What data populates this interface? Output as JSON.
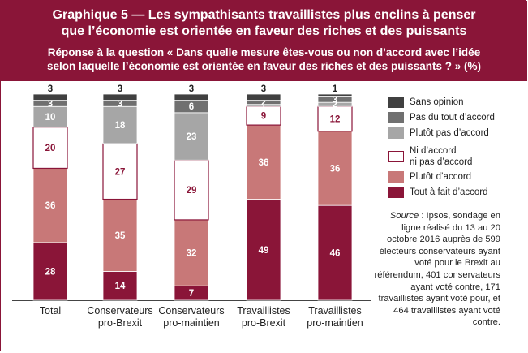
{
  "header": {
    "title_line1": "Graphique 5 — Les sympathisants travaillistes plus enclins à penser",
    "title_line2": "que l’économie est orientée en faveur des riches et des puissants",
    "subtitle_line1": "Réponse à la question « Dans quelle mesure êtes-vous ou non d’accord avec l’idée",
    "subtitle_line2": "selon laquelle l’économie est orientée en faveur des riches et des puissants ? » (%)"
  },
  "colors": {
    "header_bg": "#8a1538",
    "sans_opinion": "#404040",
    "pas_du_tout": "#707070",
    "plutot_pas": "#a6a6a6",
    "ni_accord": "#ffffff",
    "plutot_accord": "#c87878",
    "tout_a_fait": "#8a1538"
  },
  "legend": [
    {
      "key": "sans_opinion",
      "label_lines": [
        "Sans opinion"
      ]
    },
    {
      "key": "pas_du_tout",
      "label_lines": [
        "Pas du tout d’accord"
      ]
    },
    {
      "key": "plutot_pas",
      "label_lines": [
        "Plutôt pas d’accord"
      ]
    },
    {
      "key": "ni_accord",
      "label_lines": [
        "Ni d’accord",
        "ni pas d’accord"
      ]
    },
    {
      "key": "plutot_accord",
      "label_lines": [
        "Plutôt d’accord"
      ]
    },
    {
      "key": "tout_a_fait",
      "label_lines": [
        "Tout à fait d’accord"
      ]
    }
  ],
  "source": {
    "lead": "Source",
    "rest": " : Ipsos, sondage en ligne réalisé du 13 au 20 octobre 2016 auprès de 599 électeurs conservateurs ayant voté pour le Brexit au référendum, 401 conservateurs ayant voté contre, 171 travaillistes ayant voté pour, et 464 travaillistes ayant voté contre."
  },
  "chart_data": {
    "type": "bar",
    "stacked": true,
    "categories": [
      [
        "Total"
      ],
      [
        "Conservateurs",
        "pro-Brexit"
      ],
      [
        "Conservateurs",
        "pro-maintien"
      ],
      [
        "Travaillistes",
        "pro-Brexit"
      ],
      [
        "Travaillistes",
        "pro-maintien"
      ]
    ],
    "series": [
      {
        "key": "tout_a_fait",
        "name": "Tout à fait d’accord",
        "values": [
          28,
          14,
          7,
          49,
          46
        ]
      },
      {
        "key": "plutot_accord",
        "name": "Plutôt d’accord",
        "values": [
          36,
          35,
          32,
          36,
          36
        ]
      },
      {
        "key": "ni_accord",
        "name": "Ni d’accord ni pas d’accord",
        "values": [
          20,
          27,
          29,
          9,
          12
        ]
      },
      {
        "key": "plutot_pas",
        "name": "Plutôt pas d’accord",
        "values": [
          10,
          18,
          23,
          1,
          2
        ]
      },
      {
        "key": "pas_du_tout",
        "name": "Pas du tout d’accord",
        "values": [
          3,
          3,
          6,
          2,
          3
        ]
      },
      {
        "key": "sans_opinion",
        "name": "Sans opinion",
        "values": [
          3,
          3,
          3,
          3,
          1
        ]
      }
    ],
    "ylim": [
      0,
      100
    ],
    "legend_position": "right"
  }
}
